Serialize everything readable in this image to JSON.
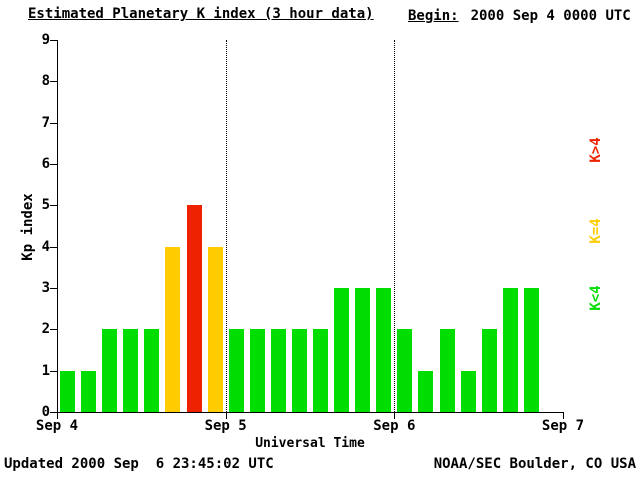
{
  "header": {
    "title": "Estimated Planetary K index (3 hour data)",
    "begin_label": "Begin:",
    "begin_value": "2000 Sep 4 0000 UTC"
  },
  "footer": {
    "updated": "Updated 2000 Sep  6 23:45:02 UTC",
    "credit": "NOAA/SEC Boulder, CO USA"
  },
  "chart_data": {
    "type": "bar",
    "title": "Estimated Planetary K index (3 hour data)",
    "xlabel": "Universal Time",
    "ylabel": "Kp index",
    "ylim": [
      0,
      9
    ],
    "yticks": [
      0,
      1,
      2,
      3,
      4,
      5,
      6,
      7,
      8,
      9
    ],
    "xtick_labels": [
      "Sep 4",
      "Sep 5",
      "Sep 6",
      "Sep 7"
    ],
    "slots_per_day": 8,
    "hours_per_slot": 3,
    "days": [
      {
        "label": "Sep 4",
        "values": [
          1,
          1,
          2,
          2,
          2,
          4,
          5,
          4
        ]
      },
      {
        "label": "Sep 5",
        "values": [
          2,
          2,
          2,
          2,
          2,
          3,
          3,
          3
        ]
      },
      {
        "label": "Sep 6",
        "values": [
          2,
          1,
          2,
          1,
          2,
          3,
          3,
          null
        ]
      }
    ],
    "colors": {
      "k_below_4": "#00DD00",
      "k_equal_4": "#FFCC00",
      "k_above_4": "#EE2200"
    },
    "legend": [
      {
        "label": "K>4",
        "color": "#EE2200"
      },
      {
        "label": "K=4",
        "color": "#FFCC00"
      },
      {
        "label": "K<4",
        "color": "#00DD00"
      }
    ],
    "grid": "dotted vertical lines at day boundaries",
    "legend_position": "right"
  }
}
